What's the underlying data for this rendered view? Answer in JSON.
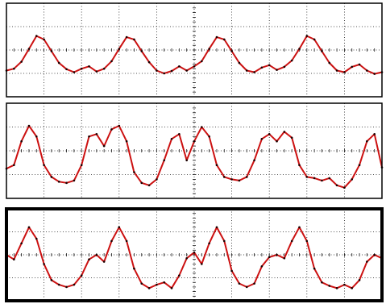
{
  "chart_data": [
    {
      "type": "line",
      "title": "",
      "xlabel": "",
      "ylabel": "",
      "grid": true,
      "xlim": [
        0,
        10
      ],
      "ylim": [
        0,
        4
      ],
      "grid_color": "#1a1a1a",
      "frame_color": "#000000",
      "series": [
        {
          "color": "#cc1111",
          "marker_color": "#1a0000",
          "x": [
            0.0,
            0.2,
            0.4,
            0.6,
            0.8,
            1.0,
            1.2,
            1.4,
            1.6,
            1.8,
            2.0,
            2.2,
            2.4,
            2.6,
            2.8,
            3.0,
            3.2,
            3.4,
            3.6,
            3.8,
            4.0,
            4.2,
            4.4,
            4.6,
            4.8,
            5.0,
            5.2,
            5.4,
            5.6,
            5.8,
            6.0,
            6.2,
            6.4,
            6.6,
            6.8,
            7.0,
            7.2,
            7.4,
            7.6,
            7.8,
            8.0,
            8.2,
            8.4,
            8.6,
            8.8,
            9.0,
            9.2,
            9.4,
            9.6,
            9.8,
            10.0
          ],
          "values": [
            1.12,
            1.2,
            1.5,
            2.05,
            2.6,
            2.45,
            1.95,
            1.45,
            1.18,
            1.05,
            1.2,
            1.3,
            1.08,
            1.2,
            1.52,
            2.05,
            2.55,
            2.45,
            1.95,
            1.48,
            1.12,
            1.0,
            1.1,
            1.3,
            1.12,
            1.3,
            1.52,
            2.05,
            2.55,
            2.45,
            1.95,
            1.45,
            1.12,
            1.05,
            1.25,
            1.35,
            1.15,
            1.28,
            1.55,
            2.05,
            2.6,
            2.45,
            1.95,
            1.45,
            1.12,
            1.05,
            1.28,
            1.38,
            1.12,
            0.98,
            1.05
          ]
        }
      ]
    },
    {
      "type": "line",
      "title": "",
      "xlabel": "",
      "ylabel": "",
      "grid": true,
      "xlim": [
        0,
        10
      ],
      "ylim": [
        0,
        4
      ],
      "grid_color": "#1a1a1a",
      "frame_color": "#000000",
      "series": [
        {
          "color": "#cc1111",
          "marker_color": "#1a0000",
          "x": [
            0.0,
            0.2,
            0.4,
            0.6,
            0.8,
            1.0,
            1.2,
            1.4,
            1.6,
            1.8,
            2.0,
            2.2,
            2.4,
            2.6,
            2.8,
            3.0,
            3.2,
            3.4,
            3.6,
            3.8,
            4.0,
            4.2,
            4.4,
            4.6,
            4.8,
            5.0,
            5.2,
            5.4,
            5.6,
            5.8,
            6.0,
            6.2,
            6.4,
            6.6,
            6.8,
            7.0,
            7.2,
            7.4,
            7.6,
            7.8,
            8.0,
            8.2,
            8.4,
            8.6,
            8.8,
            9.0,
            9.2,
            9.4,
            9.6,
            9.8,
            10.0
          ],
          "values": [
            1.25,
            1.4,
            2.4,
            3.05,
            2.6,
            1.4,
            0.9,
            0.7,
            0.65,
            0.75,
            1.4,
            2.6,
            2.7,
            2.2,
            2.9,
            3.05,
            2.4,
            1.1,
            0.65,
            0.55,
            0.8,
            1.6,
            2.5,
            2.7,
            1.6,
            2.4,
            3.0,
            2.6,
            1.4,
            0.9,
            0.8,
            0.75,
            0.9,
            1.6,
            2.5,
            2.7,
            2.4,
            2.8,
            2.55,
            1.4,
            0.9,
            0.85,
            0.75,
            0.85,
            0.55,
            0.45,
            0.8,
            1.4,
            2.4,
            2.7,
            1.3
          ]
        }
      ]
    },
    {
      "type": "line",
      "title": "",
      "xlabel": "",
      "ylabel": "",
      "grid": true,
      "xlim": [
        0,
        10
      ],
      "ylim": [
        0,
        4
      ],
      "grid_color": "#1a1a1a",
      "frame_color": "#000000",
      "series": [
        {
          "color": "#cc1111",
          "marker_color": "#1a0000",
          "x": [
            0.0,
            0.2,
            0.4,
            0.6,
            0.8,
            1.0,
            1.2,
            1.4,
            1.6,
            1.8,
            2.0,
            2.2,
            2.4,
            2.6,
            2.8,
            3.0,
            3.2,
            3.4,
            3.6,
            3.8,
            4.0,
            4.2,
            4.4,
            4.6,
            4.8,
            5.0,
            5.2,
            5.4,
            5.6,
            5.8,
            6.0,
            6.2,
            6.4,
            6.6,
            6.8,
            7.0,
            7.2,
            7.4,
            7.6,
            7.8,
            8.0,
            8.2,
            8.4,
            8.6,
            8.8,
            9.0,
            9.2,
            9.4,
            9.6,
            9.8,
            10.0
          ],
          "values": [
            2.0,
            1.8,
            2.5,
            3.2,
            2.7,
            1.6,
            0.9,
            0.7,
            0.6,
            0.7,
            1.1,
            1.8,
            2.0,
            1.7,
            2.6,
            3.2,
            2.6,
            1.4,
            0.75,
            0.55,
            0.7,
            0.8,
            0.55,
            1.1,
            1.85,
            2.1,
            1.6,
            2.5,
            3.2,
            2.6,
            1.3,
            0.75,
            0.6,
            0.75,
            1.5,
            1.9,
            2.0,
            1.85,
            2.6,
            3.2,
            2.6,
            1.4,
            0.8,
            0.65,
            0.55,
            0.7,
            0.55,
            0.9,
            1.7,
            2.0,
            1.85
          ]
        }
      ]
    }
  ]
}
